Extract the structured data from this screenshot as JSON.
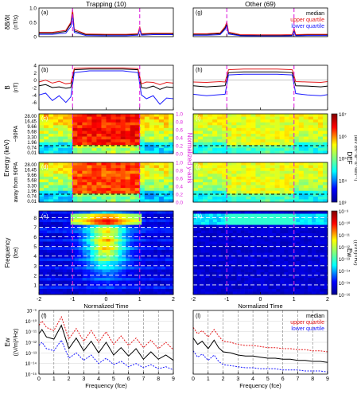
{
  "colors": {
    "median": "#000000",
    "upper_quartile": "#e41a1c",
    "lower_quartile": "#1a1aff",
    "marker": "#dd22dd",
    "normalized_axis": "#dd22dd"
  },
  "chart_data": [
    {
      "type": "line",
      "panel": "a",
      "column_title": "Trapping (10)",
      "panel_label": "(a)",
      "ylabel": "δB/δt",
      "yunit": "(nT/s)",
      "ylim": [
        0,
        1
      ],
      "yticks": [
        "0",
        "0.5",
        "1.0"
      ],
      "xlim": [
        -2,
        2
      ],
      "markers": [
        -1,
        1
      ],
      "series": [
        {
          "name": "median",
          "x": [
            -2,
            -1.6,
            -1.2,
            -1.05,
            -1,
            -0.95,
            -0.6,
            0,
            0.6,
            0.95,
            1,
            1.05,
            1.4,
            2
          ],
          "values": [
            0.12,
            0.12,
            0.18,
            0.45,
            0.88,
            0.2,
            0.07,
            0.06,
            0.06,
            0.08,
            0.3,
            0.08,
            0.1,
            0.1
          ]
        },
        {
          "name": "upper quartile",
          "x": [
            -2,
            -1.6,
            -1.2,
            -1.05,
            -1,
            -0.95,
            -0.6,
            0,
            0.6,
            0.95,
            1,
            1.05,
            1.4,
            2
          ],
          "values": [
            0.15,
            0.15,
            0.22,
            0.5,
            0.95,
            0.25,
            0.09,
            0.08,
            0.08,
            0.1,
            0.35,
            0.1,
            0.12,
            0.12
          ]
        },
        {
          "name": "lower quartile",
          "x": [
            -2,
            -1.6,
            -1.2,
            -1.05,
            -1,
            -0.95,
            -0.6,
            0,
            0.6,
            0.95,
            1,
            1.05,
            1.4,
            2
          ],
          "values": [
            0.08,
            0.08,
            0.12,
            0.35,
            0.78,
            0.15,
            0.04,
            0.03,
            0.03,
            0.05,
            0.25,
            0.05,
            0.07,
            0.07
          ]
        }
      ]
    },
    {
      "type": "line",
      "panel": "g",
      "column_title": "Other (69)",
      "panel_label": "(g)",
      "ylim": [
        0,
        1
      ],
      "xlim": [
        -2,
        2
      ],
      "markers": [
        -1,
        1
      ],
      "legend": [
        "median",
        "upper quartile",
        "lower quartile"
      ],
      "legend_position": "top-right",
      "series": [
        {
          "name": "median",
          "x": [
            -2,
            -1.6,
            -1.2,
            -1.05,
            -1,
            -0.95,
            -0.6,
            0,
            0.6,
            0.95,
            1,
            1.05,
            1.4,
            2
          ],
          "values": [
            0.08,
            0.08,
            0.1,
            0.3,
            0.45,
            0.12,
            0.05,
            0.04,
            0.04,
            0.05,
            0.22,
            0.05,
            0.06,
            0.06
          ]
        },
        {
          "name": "upper quartile",
          "x": [
            -2,
            -1.6,
            -1.2,
            -1.05,
            -1,
            -0.95,
            -0.6,
            0,
            0.6,
            0.95,
            1,
            1.05,
            1.4,
            2
          ],
          "values": [
            0.1,
            0.1,
            0.13,
            0.35,
            0.52,
            0.16,
            0.07,
            0.06,
            0.06,
            0.07,
            0.28,
            0.07,
            0.08,
            0.08
          ]
        },
        {
          "name": "lower quartile",
          "x": [
            -2,
            -1.6,
            -1.2,
            -1.05,
            -1,
            -0.95,
            -0.6,
            0,
            0.6,
            0.95,
            1,
            1.05,
            1.4,
            2
          ],
          "values": [
            0.05,
            0.05,
            0.07,
            0.25,
            0.38,
            0.09,
            0.03,
            0.02,
            0.02,
            0.03,
            0.18,
            0.03,
            0.04,
            0.04
          ]
        }
      ]
    },
    {
      "type": "line",
      "panel": "b",
      "panel_label": "(b)",
      "ylabel": "B",
      "yunit": "(nT)",
      "ylim": [
        -8,
        4
      ],
      "yticks": [
        "4",
        "2",
        "0",
        "-2",
        "-4",
        "-6"
      ],
      "xlim": [
        -2,
        2
      ],
      "markers": [
        -1,
        1
      ],
      "series": [
        {
          "name": "median",
          "x": [
            -2,
            -1.8,
            -1.6,
            -1.4,
            -1.2,
            -1.05,
            -0.95,
            -0.5,
            0,
            0.5,
            0.95,
            1.05,
            1.2,
            1.4,
            1.6,
            1.8,
            2
          ],
          "values": [
            -1.5,
            -1.2,
            -2.0,
            -1.8,
            -2.2,
            -2.0,
            2.8,
            3.0,
            3.0,
            3.0,
            2.8,
            -2.0,
            -2.2,
            -1.6,
            -2.5,
            -1.8,
            -2.0
          ]
        },
        {
          "name": "upper quartile",
          "x": [
            -2,
            -1.8,
            -1.6,
            -1.4,
            -1.2,
            -1.05,
            -0.95,
            -0.5,
            0,
            0.5,
            0.95,
            1.05,
            1.2,
            1.4,
            1.6,
            1.8,
            2
          ],
          "values": [
            -0.5,
            0,
            -0.8,
            -0.3,
            -1.0,
            -0.8,
            3.2,
            3.3,
            3.3,
            3.3,
            3.1,
            -1.0,
            -0.5,
            -0.6,
            -1.2,
            -0.6,
            -0.8
          ]
        },
        {
          "name": "lower quartile",
          "x": [
            -2,
            -1.8,
            -1.6,
            -1.4,
            -1.2,
            -1.05,
            -0.95,
            -0.5,
            0,
            0.5,
            0.95,
            1.05,
            1.2,
            1.4,
            1.6,
            1.8,
            2
          ],
          "values": [
            -4.0,
            -3.5,
            -5.5,
            -4.2,
            -6.0,
            -4.5,
            2.0,
            2.5,
            2.5,
            2.5,
            2.0,
            -4.0,
            -5.0,
            -4.2,
            -6.5,
            -4.8,
            -5.0
          ]
        }
      ]
    },
    {
      "type": "line",
      "panel": "h",
      "panel_label": "(h)",
      "ylim": [
        -8,
        4
      ],
      "xlim": [
        -2,
        2
      ],
      "markers": [
        -1,
        1
      ],
      "series": [
        {
          "name": "median",
          "x": [
            -2,
            -1.6,
            -1.2,
            -1.05,
            -0.95,
            -0.5,
            0,
            0.5,
            0.95,
            1.05,
            1.4,
            1.8,
            2
          ],
          "values": [
            -1.5,
            -1.8,
            -1.6,
            -1.5,
            2.0,
            2.2,
            2.2,
            2.2,
            2.0,
            -1.5,
            -1.6,
            -1.8,
            -1.6
          ]
        },
        {
          "name": "upper quartile",
          "x": [
            -2,
            -1.6,
            -1.2,
            -1.05,
            -0.95,
            -0.5,
            0,
            0.5,
            0.95,
            1.05,
            1.4,
            1.8,
            2
          ],
          "values": [
            -0.5,
            -0.6,
            -0.4,
            -0.5,
            2.8,
            3.0,
            3.0,
            3.0,
            2.8,
            -0.4,
            -0.5,
            -0.6,
            -0.4
          ]
        },
        {
          "name": "lower quartile",
          "x": [
            -2,
            -1.6,
            -1.2,
            -1.05,
            -0.95,
            -0.5,
            0,
            0.5,
            0.95,
            1.05,
            1.4,
            1.8,
            2
          ],
          "values": [
            -3.8,
            -4.2,
            -3.9,
            -3.8,
            1.4,
            1.6,
            1.6,
            1.6,
            1.4,
            -3.6,
            -4.0,
            -4.2,
            -3.9
          ]
        }
      ]
    },
    {
      "type": "heatmap",
      "panel": "c",
      "panel_label": "(c)",
      "ylabel": "~90PA",
      "yticks": [
        "28.00",
        "16.45",
        "9.66",
        "5.68",
        "3.30",
        "1.96",
        "0.74",
        "0.01"
      ],
      "xlim": [
        -2,
        2
      ],
      "markers": [
        -1,
        1
      ],
      "dashed_level": 0.74,
      "normalized_ticks": [
        "1.0",
        "0.8",
        "0.6",
        "0.4",
        "0.2",
        "0.0"
      ]
    },
    {
      "type": "heatmap",
      "panel": "i",
      "panel_label": "(i)",
      "xlim": [
        -2,
        2
      ],
      "markers": [
        -1,
        1
      ],
      "dashed_level": 0.74
    },
    {
      "type": "heatmap",
      "panel": "d",
      "panel_label": "(d)",
      "ylabel": "away from 90PA",
      "group_ylabel": "Energy (keV)",
      "yticks": [
        "28.00",
        "16.45",
        "9.66",
        "5.68",
        "3.30",
        "1.96",
        "0.74",
        "0.01"
      ],
      "xlim": [
        -2,
        2
      ],
      "markers": [
        -1,
        1
      ],
      "dashed_level": 0.74,
      "normalized_ticks": [
        "1.0",
        "0.8",
        "0.6",
        "0.4",
        "0.2",
        "0.0"
      ],
      "normalized_label": "Normalized y-axis"
    },
    {
      "type": "heatmap",
      "panel": "j",
      "panel_label": "(j)",
      "xlim": [
        -2,
        2
      ],
      "markers": [
        -1,
        1
      ],
      "dashed_level": 0.74,
      "colorbar_label": "DEF",
      "colorbar_unit": "(keV cm⁻²sr⁻¹s⁻¹keV⁻¹)",
      "colorbar_ticks": [
        "10⁷",
        "10⁶",
        "10⁵",
        "10⁴",
        "10³"
      ]
    },
    {
      "type": "heatmap",
      "panel": "e",
      "panel_label": "(e)",
      "ylabel": "Frequency",
      "yunit": "(fce)",
      "yticks": [
        "8",
        "7",
        "6",
        "5",
        "4",
        "3",
        "2",
        "1"
      ],
      "xlabel": "Normalized Time",
      "xticks": [
        "-2",
        "-1",
        "0",
        "1",
        "2"
      ],
      "xlim": [
        -2,
        2
      ],
      "markers": [
        -1,
        1
      ]
    },
    {
      "type": "heatmap",
      "panel": "k",
      "panel_label": "(k)",
      "xlabel": "Normalized Time",
      "xticks": [
        "-2",
        "-1",
        "0",
        "1",
        "2"
      ],
      "xlim": [
        -2,
        2
      ],
      "markers": [
        -1,
        1
      ],
      "colorbar_label": "Ew",
      "colorbar_unit": "((V/m)²/Hz)",
      "colorbar_ticks": [
        "10⁻⁹",
        "10⁻¹⁰",
        "10⁻¹¹",
        "10⁻¹²",
        "10⁻¹³",
        "10⁻¹⁴",
        "10⁻¹⁵",
        "10⁻¹⁶"
      ]
    },
    {
      "type": "line",
      "panel": "f",
      "panel_label": "(f)",
      "ylabel": "Ew",
      "yunit": "((V/m)²/Hz)",
      "xlabel": "Frequency (fce)",
      "xticks": [
        "0",
        "1",
        "2",
        "3",
        "4",
        "5",
        "6",
        "7",
        "8",
        "9"
      ],
      "yticks": [
        "10⁻⁹",
        "10⁻¹⁰",
        "10⁻¹¹",
        "10⁻¹²",
        "10⁻¹³",
        "10⁻¹⁴",
        "10⁻¹⁵"
      ],
      "xlim": [
        0,
        9
      ],
      "ylim_log10": [
        -15,
        -9
      ],
      "log_y": true,
      "series": [
        {
          "name": "median",
          "x": [
            0,
            0.2,
            0.5,
            1,
            1.5,
            2,
            2.5,
            3,
            3.5,
            4,
            4.5,
            5,
            5.5,
            6,
            6.5,
            7,
            7.5,
            8,
            8.5,
            9
          ],
          "values": [
            -11.2,
            -10.8,
            -11.5,
            -11.7,
            -10.4,
            -12.6,
            -11.6,
            -12.8,
            -11.9,
            -13.0,
            -12.0,
            -13.2,
            -12.5,
            -13.3,
            -12.6,
            -13.6,
            -12.9,
            -13.6,
            -13.2,
            -13.7
          ]
        },
        {
          "name": "upper quartile",
          "x": [
            0,
            0.2,
            0.5,
            1,
            1.5,
            2,
            2.5,
            3,
            3.5,
            4,
            4.5,
            5,
            5.5,
            6,
            6.5,
            7,
            7.5,
            8,
            8.5,
            9
          ],
          "values": [
            -10.4,
            -10.0,
            -10.6,
            -10.9,
            -9.6,
            -11.7,
            -10.7,
            -11.9,
            -10.9,
            -12.0,
            -11.0,
            -12.2,
            -11.4,
            -12.3,
            -11.6,
            -12.5,
            -11.8,
            -12.6,
            -12.0,
            -12.7
          ]
        },
        {
          "name": "lower quartile",
          "x": [
            0,
            0.2,
            0.5,
            1,
            1.5,
            2,
            2.5,
            3,
            3.5,
            4,
            4.5,
            5,
            5.5,
            6,
            6.5,
            7,
            7.5,
            8,
            8.5,
            9
          ],
          "values": [
            -12.3,
            -12.0,
            -12.6,
            -12.8,
            -11.8,
            -13.5,
            -13.0,
            -13.7,
            -13.2,
            -14.0,
            -13.5,
            -14.1,
            -13.8,
            -14.3,
            -14.0,
            -14.4,
            -14.1,
            -14.5,
            -14.3,
            -14.6
          ]
        }
      ]
    },
    {
      "type": "line",
      "panel": "l",
      "panel_label": "(l)",
      "xlabel": "Frequency (fce)",
      "xticks": [
        "0",
        "1",
        "2",
        "3",
        "4",
        "5",
        "6",
        "7",
        "8",
        "9"
      ],
      "xlim": [
        0,
        9
      ],
      "ylim_log10": [
        -15,
        -9
      ],
      "log_y": true,
      "legend": [
        "median",
        "upper quartile",
        "lower quartile"
      ],
      "legend_position": "top-right",
      "series": [
        {
          "name": "median",
          "x": [
            0,
            0.3,
            0.6,
            1,
            1.4,
            1.7,
            2,
            2.5,
            3,
            3.5,
            4,
            4.5,
            5,
            5.5,
            6,
            6.5,
            7,
            7.5,
            8,
            8.5,
            9
          ],
          "values": [
            -11.6,
            -12.2,
            -11.9,
            -12.6,
            -11.8,
            -12.5,
            -12.9,
            -13.0,
            -13.2,
            -13.3,
            -13.3,
            -13.4,
            -13.5,
            -13.5,
            -13.6,
            -13.6,
            -13.7,
            -13.7,
            -13.8,
            -13.8,
            -13.9
          ]
        },
        {
          "name": "upper quartile",
          "x": [
            0,
            0.3,
            0.6,
            1,
            1.4,
            1.7,
            2,
            2.5,
            3,
            3.5,
            4,
            4.5,
            5,
            5.5,
            6,
            6.5,
            7,
            7.5,
            8,
            8.5,
            9
          ],
          "values": [
            -10.6,
            -11.2,
            -10.9,
            -11.5,
            -10.8,
            -11.4,
            -11.9,
            -12.0,
            -12.2,
            -12.3,
            -12.3,
            -12.4,
            -12.5,
            -12.5,
            -12.6,
            -12.6,
            -12.7,
            -12.7,
            -12.8,
            -12.8,
            -12.9
          ]
        },
        {
          "name": "lower quartile",
          "x": [
            0,
            0.3,
            0.6,
            1,
            1.4,
            1.7,
            2,
            2.5,
            3,
            3.5,
            4,
            4.5,
            5,
            5.5,
            6,
            6.5,
            7,
            7.5,
            8,
            8.5,
            9
          ],
          "values": [
            -12.8,
            -13.4,
            -13.1,
            -13.7,
            -13.2,
            -13.8,
            -14.1,
            -14.2,
            -14.3,
            -14.4,
            -14.4,
            -14.5,
            -14.5,
            -14.5,
            -14.6,
            -14.6,
            -14.6,
            -14.7,
            -14.7,
            -14.7,
            -14.8
          ]
        }
      ]
    }
  ]
}
